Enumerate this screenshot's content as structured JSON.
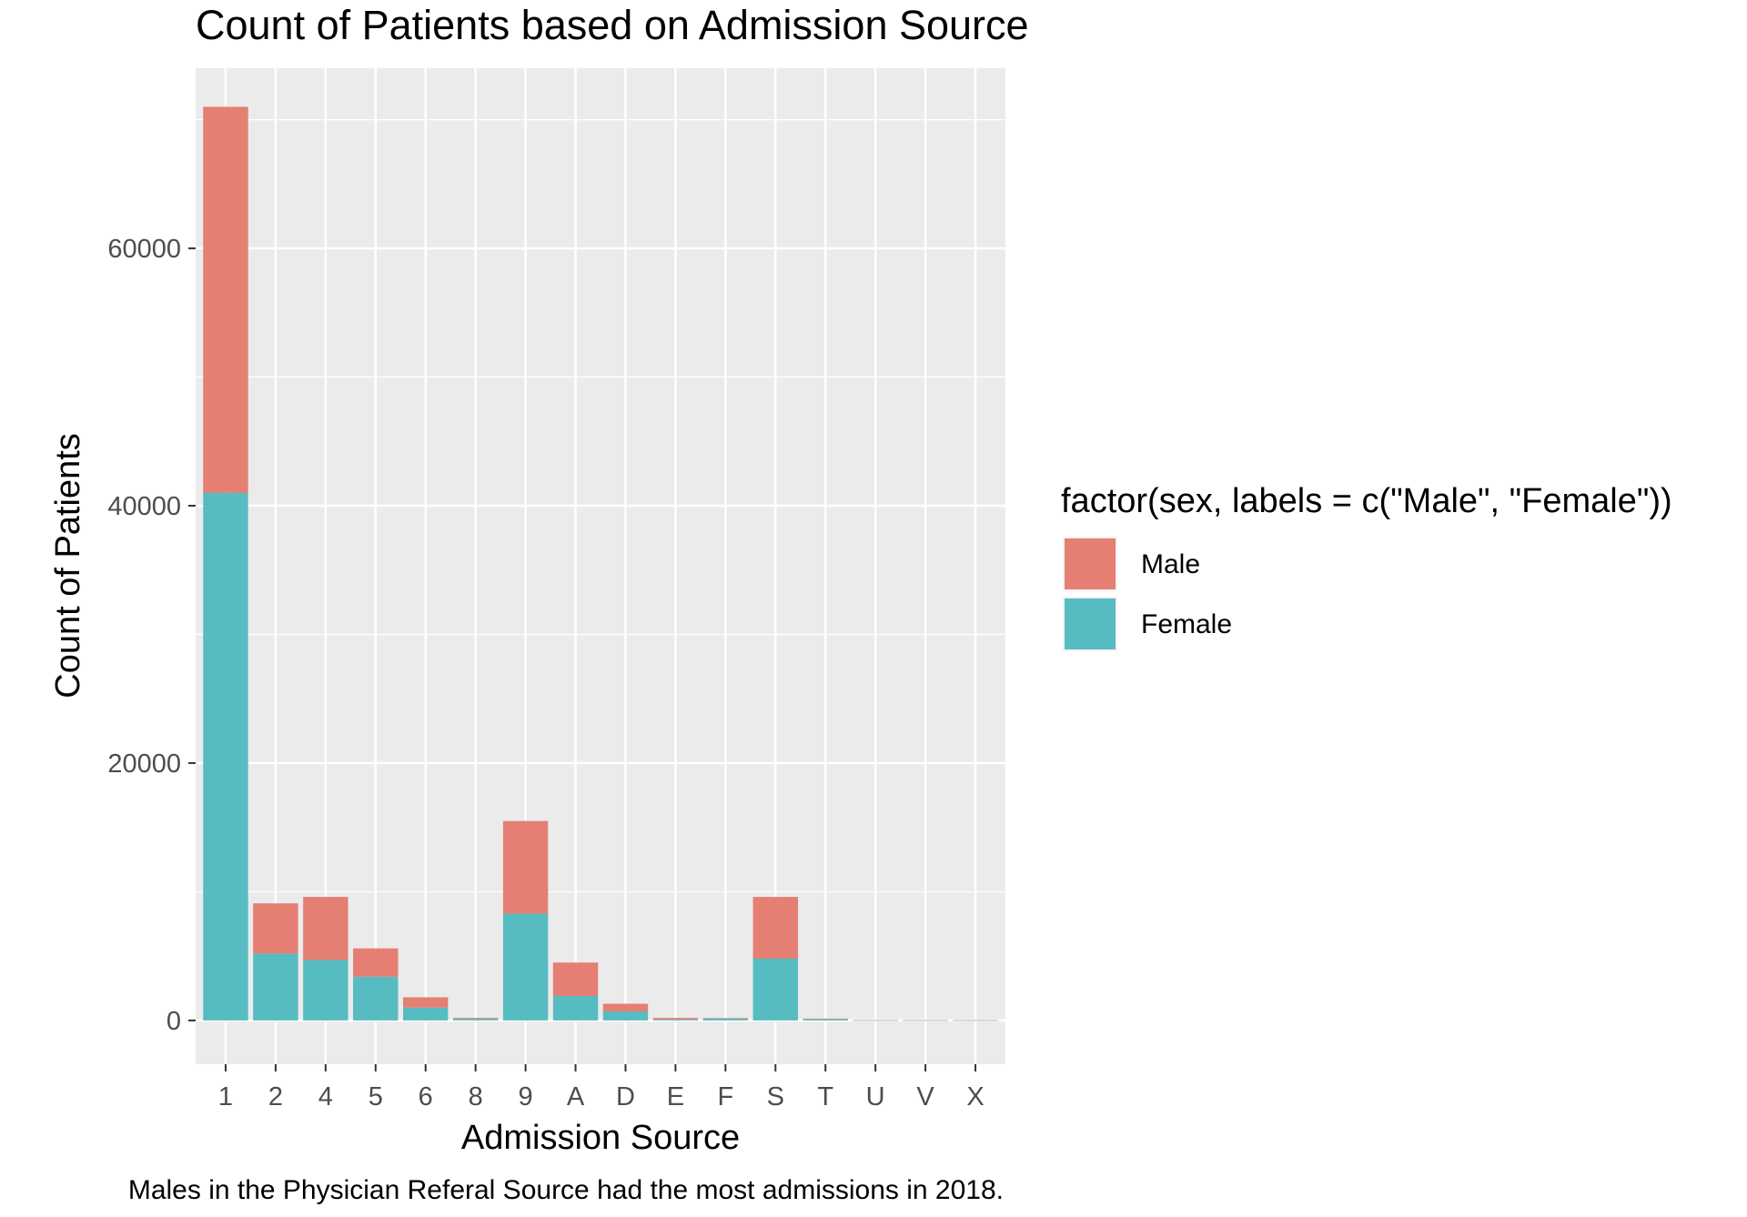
{
  "chart_data": {
    "type": "bar",
    "stacked": true,
    "title": "Count of Patients based on Admission Source",
    "xlabel": "Admission Source",
    "ylabel": "Count of Patients",
    "caption": "Males in the Physician Referal Source had the most admissions in 2018.",
    "categories": [
      "1",
      "2",
      "4",
      "5",
      "6",
      "8",
      "9",
      "A",
      "D",
      "E",
      "F",
      "S",
      "T",
      "U",
      "V",
      "X"
    ],
    "series": [
      {
        "name": "Male",
        "color": "#E57F73",
        "values": [
          30000,
          3900,
          4900,
          2200,
          800,
          80,
          7200,
          2600,
          600,
          120,
          50,
          4800,
          40,
          8,
          8,
          8
        ]
      },
      {
        "name": "Female",
        "color": "#56BCC2",
        "values": [
          41000,
          5200,
          4700,
          3400,
          1000,
          120,
          8300,
          1900,
          700,
          80,
          140,
          4800,
          100,
          10,
          10,
          10
        ]
      }
    ],
    "ylim": [
      -3400,
      74000
    ],
    "yticks": [
      0,
      20000,
      40000,
      60000
    ],
    "ytick_labels": [
      "0",
      "20000",
      "40000",
      "60000"
    ],
    "legend": {
      "title": "factor(sex, labels = c(\"Male\", \"Female\"))",
      "position": "right"
    },
    "grid": true,
    "panel_background": "#EBEBEB"
  }
}
